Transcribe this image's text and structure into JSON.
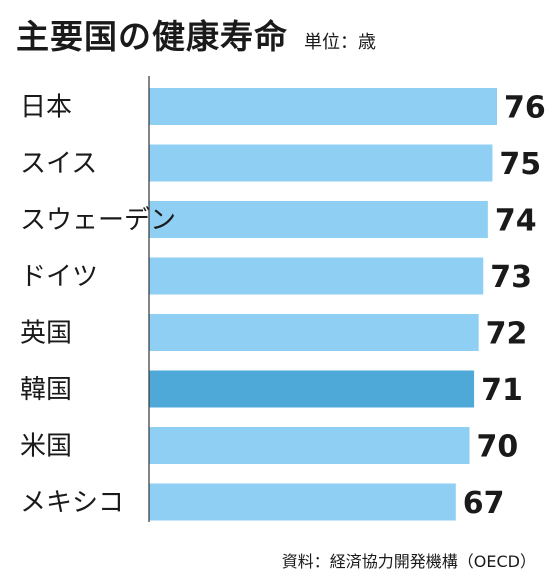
{
  "header": {
    "title": "主要国の健康寿命",
    "unit": "単位：歳"
  },
  "footer": {
    "source": "資料：経済協力開発機構（OECD）"
  },
  "colors": {
    "bar": "#8ecff3",
    "highlight_bar": "#4ea8d8",
    "axis": "#333333"
  },
  "chart_data": {
    "type": "bar",
    "orientation": "horizontal",
    "categories": [
      "日本",
      "スイス",
      "スウェーデン",
      "ドイツ",
      "英国",
      "韓国",
      "米国",
      "メキシコ"
    ],
    "values": [
      76,
      75,
      74,
      73,
      72,
      71,
      70,
      67
    ],
    "highlight_category": "韓国",
    "xlim": [
      0,
      76
    ],
    "grid": false,
    "legend": "none"
  }
}
